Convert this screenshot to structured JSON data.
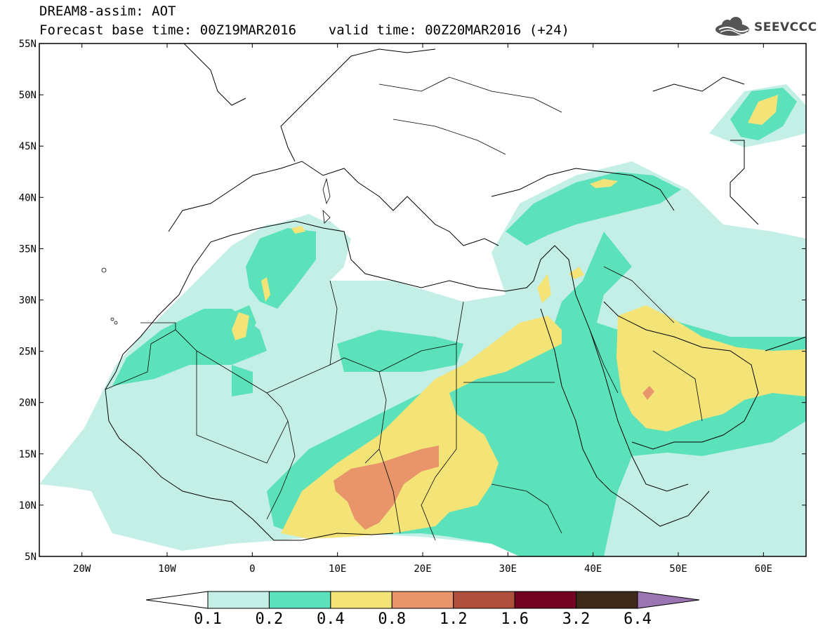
{
  "header": {
    "title_line1": "DREAM8-assim: AOT",
    "title_line2": "Forecast base time: 00Z19MAR2016    valid time: 00Z20MAR2016 (+24)"
  },
  "brand": {
    "name": "SEEVCCC",
    "icon": "cloud-icon"
  },
  "map": {
    "lon_range": [
      -25,
      65
    ],
    "lat_range": [
      5,
      55
    ],
    "lat_labels": [
      "55N",
      "50N",
      "45N",
      "40N",
      "35N",
      "30N",
      "25N",
      "20N",
      "15N",
      "10N",
      "5N"
    ],
    "lon_labels": [
      "20W",
      "10W",
      "0",
      "10E",
      "20E",
      "30E",
      "40E",
      "50E",
      "60E"
    ]
  },
  "colorbar": {
    "labels": [
      "0.1",
      "0.2",
      "0.4",
      "0.8",
      "1.2",
      "1.6",
      "3.2",
      "6.4"
    ],
    "colors": [
      "#ffffff",
      "#c4efe6",
      "#5ce2bb",
      "#f4e478",
      "#e8956c",
      "#ae4f3c",
      "#730322",
      "#3e2818",
      "#9b74b2"
    ]
  }
}
